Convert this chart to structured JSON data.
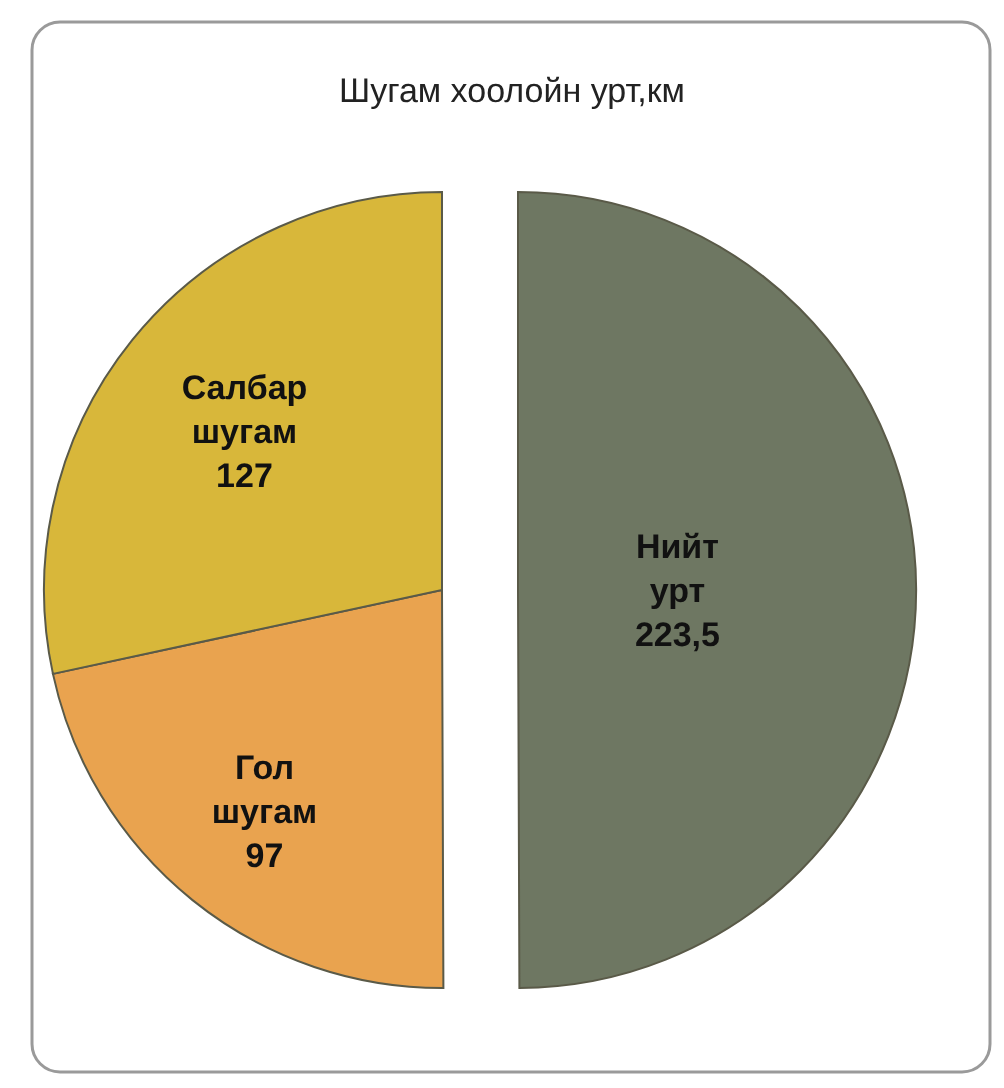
{
  "chart_data": {
    "type": "pie",
    "title": "Шугам хоолойн урт,км",
    "categories": [
      "Нийт урт",
      "Гол шугам",
      "Салбар шугам"
    ],
    "values": [
      223.5,
      97,
      127
    ],
    "colors": [
      "#6e7762",
      "#e9a34f",
      "#d8b73a"
    ],
    "value_labels": [
      "223,5",
      "97",
      "127"
    ]
  }
}
